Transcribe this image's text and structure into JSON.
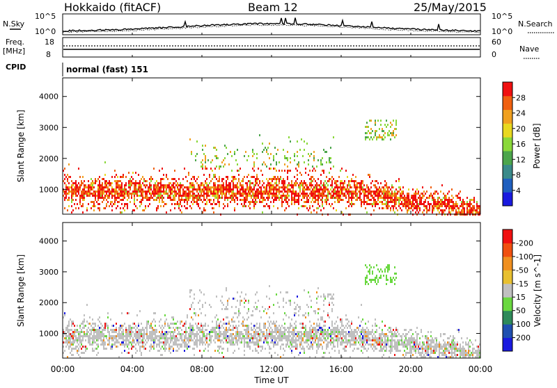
{
  "header": {
    "station": "Hokkaido (fitACF)",
    "beam": "Beam 12",
    "date": "25/May/2015"
  },
  "noise_panel": {
    "left_label": "N.Sky",
    "right_label": "N.Search",
    "left_ticks": [
      "10^5",
      "10^0"
    ],
    "right_ticks": [
      "10^5",
      "10^0"
    ]
  },
  "freq_panel": {
    "left_label_1": "Freq.",
    "left_label_2": "[MHz]",
    "right_label": "Nave",
    "left_ticks": [
      "18",
      "8"
    ],
    "right_ticks": [
      "60",
      "0"
    ]
  },
  "cpid_panel": {
    "label": "CPID",
    "value": "normal (fast) 151"
  },
  "chart_data": [
    {
      "type": "heatmap",
      "name": "power",
      "ylabel": "Slant Range [km]",
      "yticks": [
        "1000",
        "2000",
        "3000",
        "4000"
      ],
      "ylim": [
        200,
        4600
      ],
      "colorbar_label": "Power [dB]",
      "colorbar_ticks": [
        "4",
        "8",
        "12",
        "16",
        "20",
        "24",
        "28"
      ],
      "colorscale": [
        "#1a1adf",
        "#1f5fbf",
        "#3a8a8a",
        "#4ca54c",
        "#8ad83a",
        "#e8d820",
        "#f0a020",
        "#f06010",
        "#f01010"
      ]
    },
    {
      "type": "heatmap",
      "name": "velocity",
      "ylabel": "Slant Range [km]",
      "yticks": [
        "1000",
        "2000",
        "3000",
        "4000"
      ],
      "ylim": [
        200,
        4600
      ],
      "colorbar_label": "Velocity [m s^-1]",
      "colorbar_ticks": [
        "200",
        "100",
        "50",
        "15",
        "-15",
        "-50",
        "-100",
        "-200"
      ],
      "colorscale": [
        "#1a1adf",
        "#2050b0",
        "#2e8a5a",
        "#6ad840",
        "#c0c0c0",
        "#e8c030",
        "#f09020",
        "#f05010",
        "#f01010"
      ]
    }
  ],
  "xaxis": {
    "label": "Time UT",
    "ticks": [
      "00:00",
      "04:00",
      "08:00",
      "12:00",
      "16:00",
      "20:00",
      "00:00"
    ]
  }
}
